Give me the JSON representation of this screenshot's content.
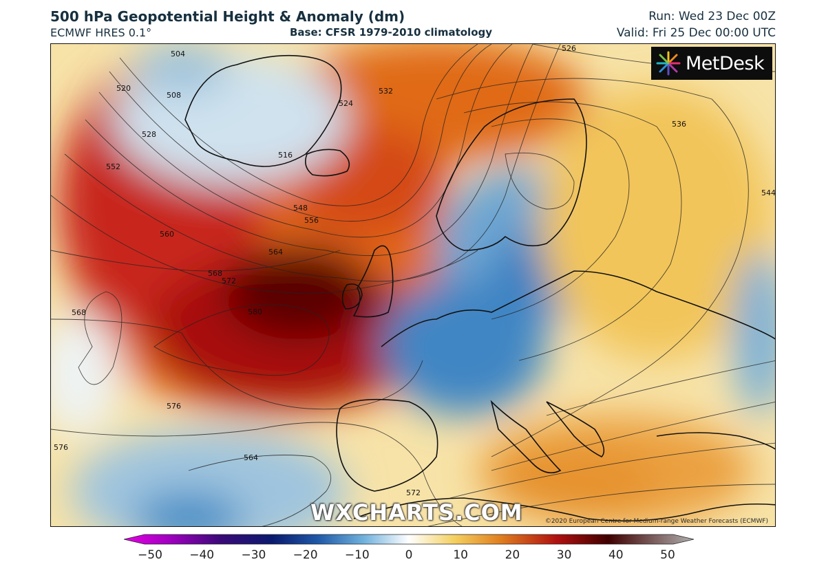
{
  "header": {
    "title": "500 hPa Geopotential Height & Anomaly (dm)",
    "model": "ECMWF HRES 0.1°",
    "base": "Base: CFSR 1979-2010 climatology",
    "run": "Run: Wed 23 Dec 00Z",
    "valid": "Valid: Fri 25 Dec 00:00 UTC"
  },
  "logo": {
    "text": "MetDesk",
    "icon": "starburst-logo-icon"
  },
  "watermark": "WXCHARTS.COM",
  "copyright": "©2020 European Centre for Medium-range Weather Forecasts (ECMWF)",
  "contour_labels": [
    "504",
    "508",
    "520",
    "516",
    "524",
    "532",
    "528",
    "526",
    "536",
    "544",
    "548",
    "552",
    "556",
    "560",
    "564",
    "568",
    "572",
    "576",
    "580",
    "568",
    "564",
    "572",
    "576"
  ],
  "colorbar": {
    "unit": "dm",
    "ticks": [
      "−50",
      "−40",
      "−30",
      "−20",
      "−10",
      "0",
      "10",
      "20",
      "30",
      "40",
      "50"
    ],
    "colors": [
      "#e400e4",
      "#a000c0",
      "#3a0a78",
      "#0a1a6e",
      "#1f58a8",
      "#6fb0dc",
      "#ffffff",
      "#f4d060",
      "#e08020",
      "#b01010",
      "#400000",
      "#b0b0b0"
    ]
  }
}
